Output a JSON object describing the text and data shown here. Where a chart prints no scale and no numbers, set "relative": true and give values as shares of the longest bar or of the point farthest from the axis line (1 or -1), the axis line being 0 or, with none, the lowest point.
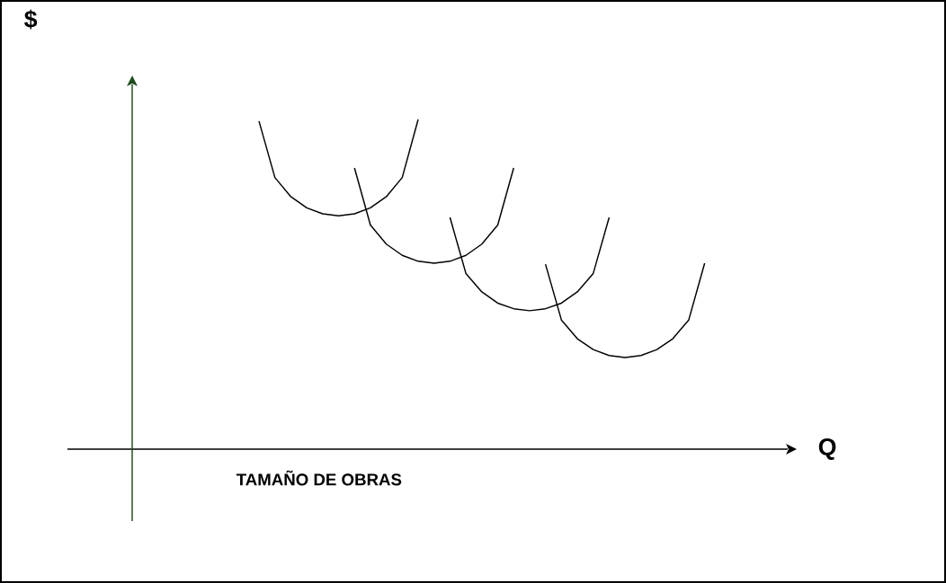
{
  "chart_data": {
    "type": "line",
    "relative": true,
    "xlabel": "Q",
    "annotations": [
      "$",
      "TAMAÑO DE OBRAS"
    ],
    "marker": "none",
    "line_style": "solid",
    "categories": [
      null,
      null,
      null,
      null,
      null,
      null,
      null,
      null,
      null,
      null,
      null,
      null,
      null,
      null,
      null,
      null,
      null,
      null,
      null,
      null,
      null,
      null,
      null,
      null,
      null,
      null,
      null,
      null,
      null
    ],
    "series": [
      {
        "color": "#000000",
        "values": [
          0.995,
          0.824,
          0.766,
          0.732,
          0.714,
          0.708,
          0.714,
          0.732,
          0.766,
          0.824,
          1.0,
          null,
          null,
          null,
          null,
          null,
          null,
          null,
          null,
          null,
          null,
          null,
          null,
          null,
          null,
          null,
          null,
          null,
          null
        ]
      },
      {
        "color": "#000000",
        "values": [
          null,
          null,
          null,
          null,
          null,
          null,
          0.853,
          0.68,
          0.622,
          0.588,
          0.57,
          0.564,
          0.57,
          0.588,
          0.622,
          0.68,
          0.853,
          null,
          null,
          null,
          null,
          null,
          null,
          null,
          null,
          null,
          null,
          null,
          null
        ]
      },
      {
        "color": "#000000",
        "values": [
          null,
          null,
          null,
          null,
          null,
          null,
          null,
          null,
          null,
          null,
          null,
          null,
          0.703,
          0.533,
          0.477,
          0.443,
          0.426,
          0.42,
          0.426,
          0.443,
          0.477,
          0.533,
          0.703,
          null,
          null,
          null,
          null,
          null,
          null
        ]
      },
      {
        "color": "#000000",
        "values": [
          null,
          null,
          null,
          null,
          null,
          null,
          null,
          null,
          null,
          null,
          null,
          null,
          null,
          null,
          null,
          null,
          null,
          null,
          0.561,
          0.392,
          0.335,
          0.302,
          0.284,
          0.278,
          0.284,
          0.302,
          0.335,
          0.392,
          0.564
        ]
      }
    ]
  }
}
